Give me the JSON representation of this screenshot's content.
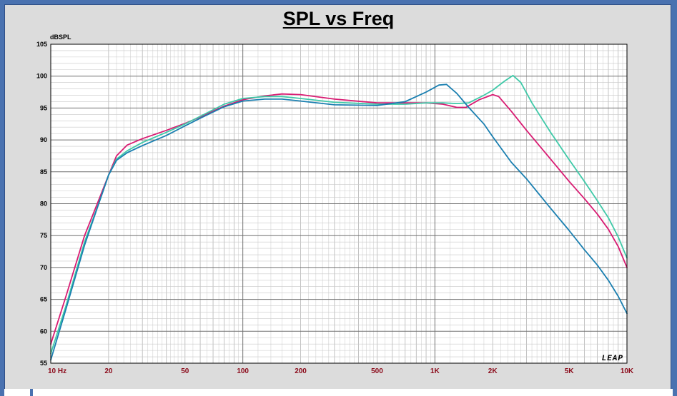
{
  "chart_data": {
    "type": "line",
    "title": "SPL vs Freq",
    "ylabel": "dBSPL",
    "xlabel": "",
    "xscale": "log",
    "xlim": [
      10,
      10000
    ],
    "ylim": [
      55,
      105
    ],
    "yticks": [
      55,
      60,
      65,
      70,
      75,
      80,
      85,
      90,
      95,
      100,
      105
    ],
    "xticks": [
      {
        "value": 10,
        "label": "10  Hz"
      },
      {
        "value": 20,
        "label": "20"
      },
      {
        "value": 50,
        "label": "50"
      },
      {
        "value": 100,
        "label": "100"
      },
      {
        "value": 200,
        "label": "200"
      },
      {
        "value": 500,
        "label": "500"
      },
      {
        "value": 1000,
        "label": "1K"
      },
      {
        "value": 2000,
        "label": "2K"
      },
      {
        "value": 5000,
        "label": "5K"
      },
      {
        "value": 10000,
        "label": "10K"
      }
    ],
    "grid": true,
    "watermark": "LEAP",
    "series": [
      {
        "color": "#d81b72",
        "points": [
          [
            10,
            58
          ],
          [
            12,
            65.5
          ],
          [
            15,
            75
          ],
          [
            18,
            81
          ],
          [
            20,
            84.5
          ],
          [
            22,
            87.5
          ],
          [
            25,
            89.2
          ],
          [
            30,
            90.2
          ],
          [
            40,
            91.5
          ],
          [
            50,
            92.6
          ],
          [
            60,
            93.6
          ],
          [
            80,
            95.3
          ],
          [
            100,
            96.3
          ],
          [
            130,
            96.9
          ],
          [
            160,
            97.2
          ],
          [
            200,
            97.1
          ],
          [
            300,
            96.4
          ],
          [
            500,
            95.8
          ],
          [
            700,
            95.8
          ],
          [
            900,
            95.8
          ],
          [
            1100,
            95.6
          ],
          [
            1300,
            95.1
          ],
          [
            1450,
            95.1
          ],
          [
            1700,
            96.3
          ],
          [
            2000,
            97.1
          ],
          [
            2150,
            96.8
          ],
          [
            2500,
            94.5
          ],
          [
            3000,
            91.5
          ],
          [
            4000,
            87
          ],
          [
            5000,
            83.5
          ],
          [
            6000,
            80.8
          ],
          [
            7000,
            78.4
          ],
          [
            8000,
            76
          ],
          [
            9000,
            73.3
          ],
          [
            10000,
            70
          ]
        ]
      },
      {
        "color": "#3fc9a8",
        "points": [
          [
            10,
            56.5
          ],
          [
            12,
            64
          ],
          [
            15,
            74
          ],
          [
            18,
            80.5
          ],
          [
            20,
            84.5
          ],
          [
            22,
            87
          ],
          [
            25,
            88.3
          ],
          [
            30,
            89.6
          ],
          [
            40,
            91.2
          ],
          [
            50,
            92.5
          ],
          [
            60,
            93.7
          ],
          [
            80,
            95.6
          ],
          [
            100,
            96.5
          ],
          [
            130,
            96.8
          ],
          [
            160,
            96.8
          ],
          [
            200,
            96.5
          ],
          [
            300,
            95.9
          ],
          [
            500,
            95.6
          ],
          [
            700,
            95.6
          ],
          [
            900,
            95.8
          ],
          [
            1100,
            95.8
          ],
          [
            1300,
            95.7
          ],
          [
            1500,
            95.8
          ],
          [
            1800,
            97
          ],
          [
            2000,
            97.8
          ],
          [
            2300,
            99.2
          ],
          [
            2550,
            100.1
          ],
          [
            2800,
            99
          ],
          [
            3200,
            95.8
          ],
          [
            4000,
            91.2
          ],
          [
            5000,
            86.9
          ],
          [
            6000,
            83.5
          ],
          [
            7000,
            80.5
          ],
          [
            8000,
            77.8
          ],
          [
            9000,
            74.8
          ],
          [
            10000,
            71.5
          ]
        ]
      },
      {
        "color": "#1a7fb0",
        "points": [
          [
            10,
            55.5
          ],
          [
            12,
            63.5
          ],
          [
            15,
            73.5
          ],
          [
            18,
            80.5
          ],
          [
            20,
            84.5
          ],
          [
            22,
            86.8
          ],
          [
            25,
            88
          ],
          [
            30,
            89.1
          ],
          [
            40,
            90.7
          ],
          [
            50,
            92.2
          ],
          [
            60,
            93.4
          ],
          [
            80,
            95.2
          ],
          [
            100,
            96.1
          ],
          [
            130,
            96.4
          ],
          [
            160,
            96.4
          ],
          [
            200,
            96.1
          ],
          [
            300,
            95.5
          ],
          [
            500,
            95.4
          ],
          [
            700,
            96
          ],
          [
            900,
            97.5
          ],
          [
            1050,
            98.6
          ],
          [
            1150,
            98.7
          ],
          [
            1300,
            97.3
          ],
          [
            1500,
            95.1
          ],
          [
            1800,
            92.5
          ],
          [
            2000,
            90.5
          ],
          [
            2500,
            86.5
          ],
          [
            3000,
            83.9
          ],
          [
            4000,
            79.3
          ],
          [
            5000,
            75.8
          ],
          [
            6000,
            72.8
          ],
          [
            7000,
            70.4
          ],
          [
            8000,
            68
          ],
          [
            9000,
            65.5
          ],
          [
            10000,
            62.8
          ]
        ]
      }
    ]
  }
}
